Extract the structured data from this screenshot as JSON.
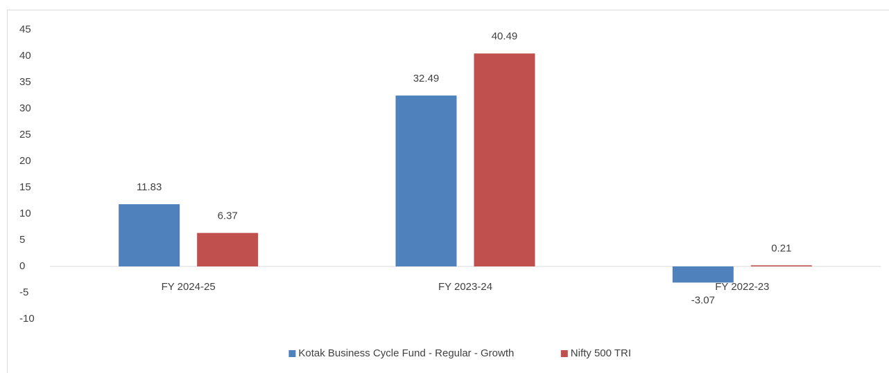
{
  "chart_data": {
    "type": "bar",
    "categories": [
      "FY 2024-25",
      "FY 2023-24",
      "FY 2022-23"
    ],
    "series": [
      {
        "name": "Kotak Business Cycle Fund - Regular - Growth",
        "color": "#4f81bd",
        "values": [
          11.83,
          32.49,
          -3.07
        ]
      },
      {
        "name": "Nifty 500 TRI",
        "color": "#c0504d",
        "values": [
          6.37,
          40.49,
          0.21
        ]
      }
    ],
    "ylim": [
      -10,
      45
    ],
    "yticks": [
      -10,
      -5,
      0,
      5,
      10,
      15,
      20,
      25,
      30,
      35,
      40,
      45
    ],
    "grid": false,
    "legend": "bottom"
  }
}
